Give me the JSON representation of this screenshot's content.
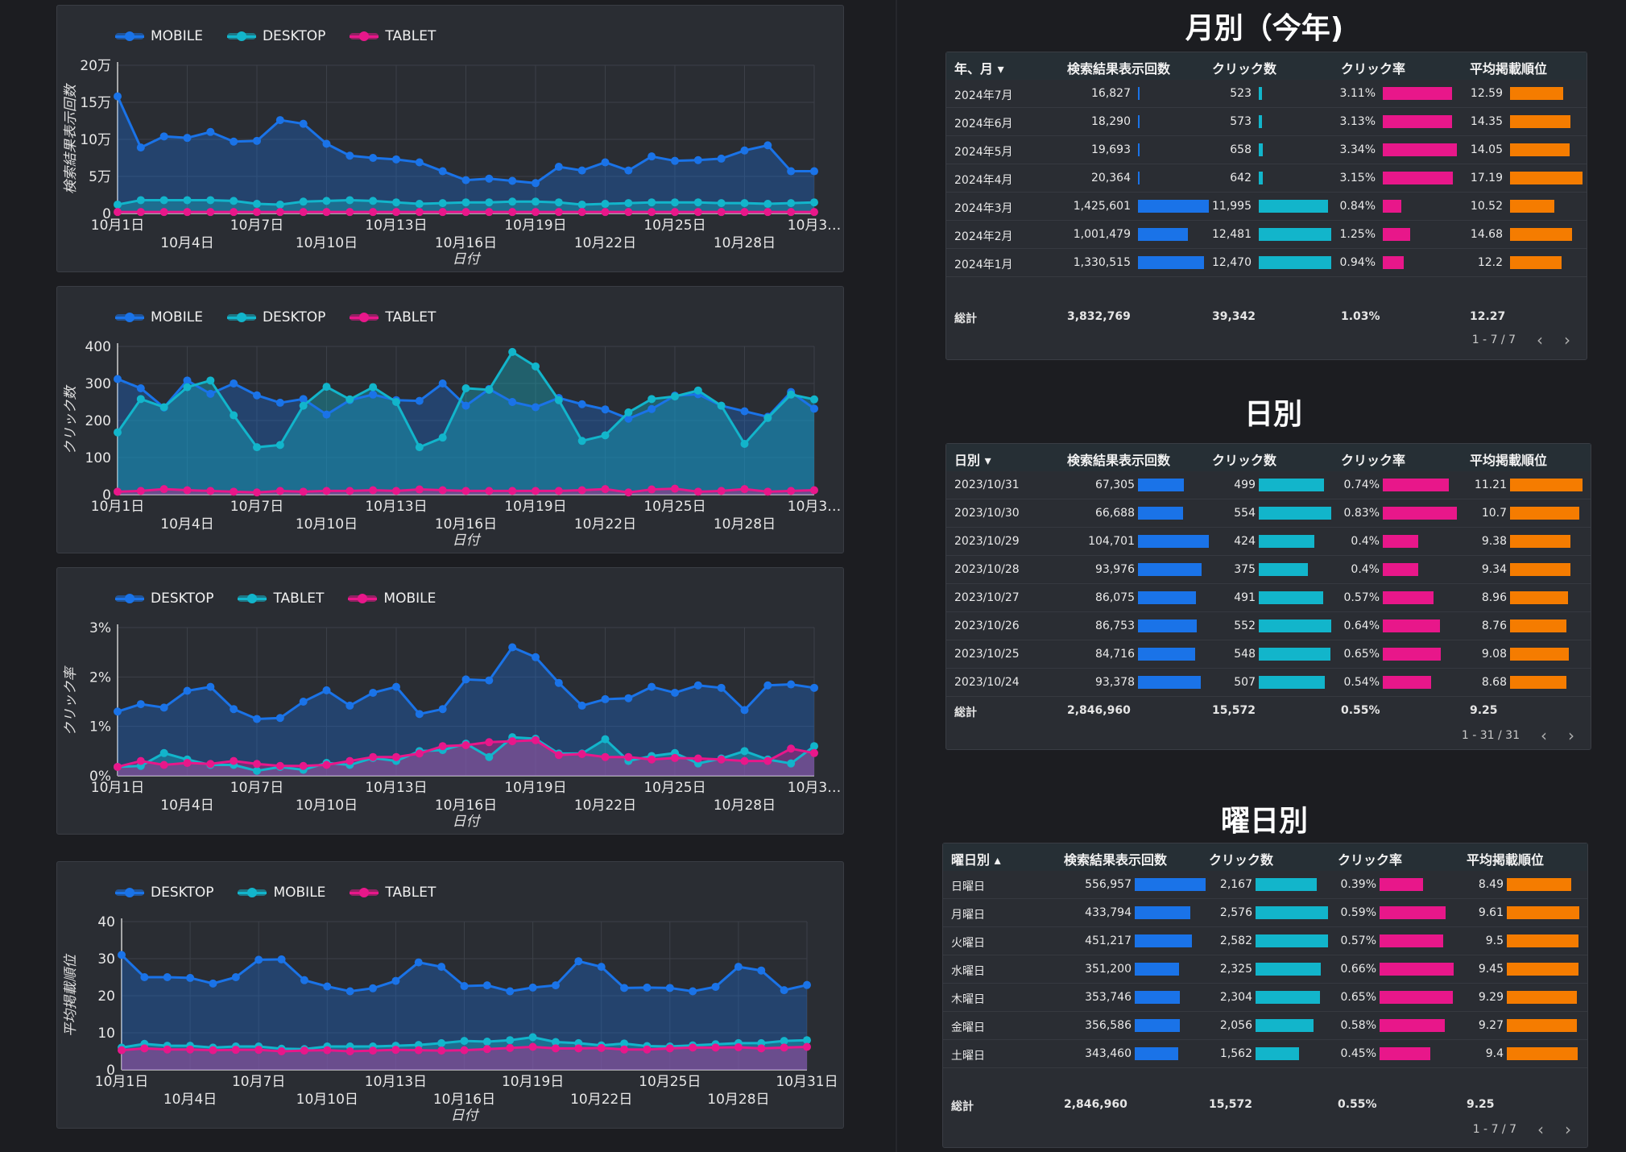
{
  "charts": [
    {
      "ylabel": "検索結果表示回数",
      "xlabel": "日付",
      "ymax": 200000,
      "ytick_values": [
        0,
        50000,
        100000,
        150000,
        200000
      ],
      "ytick_labels": [
        "0",
        "5万",
        "10万",
        "15万",
        "20万"
      ],
      "series": [
        {
          "name": "MOBILE",
          "color": "#1a73e8",
          "values": [
            158000,
            89000,
            104000,
            102000,
            110000,
            97000,
            98000,
            126000,
            121000,
            94000,
            78000,
            75000,
            73000,
            69000,
            57000,
            45000,
            47000,
            44000,
            41000,
            63000,
            58000,
            69000,
            58000,
            77000,
            71000,
            72000,
            74000,
            85000,
            92000,
            57000,
            57000
          ]
        },
        {
          "name": "DESKTOP",
          "color": "#12b5cb",
          "values": [
            12000,
            18000,
            18000,
            18000,
            18000,
            17000,
            13000,
            12000,
            16000,
            17000,
            18000,
            17000,
            15000,
            13000,
            14000,
            15000,
            15000,
            16000,
            16000,
            15000,
            12000,
            13000,
            14000,
            15000,
            15000,
            15000,
            14000,
            14000,
            13000,
            14000,
            15000
          ]
        },
        {
          "name": "TABLET",
          "color": "#e8178a",
          "values": [
            2000,
            2000,
            2000,
            2000,
            2000,
            2000,
            2000,
            2000,
            2000,
            2000,
            2000,
            2000,
            2000,
            2000,
            2000,
            2000,
            2000,
            2000,
            2000,
            2000,
            2000,
            2000,
            2000,
            2000,
            2000,
            2000,
            2000,
            2000,
            2000,
            2000,
            2000
          ]
        }
      ],
      "xticks_top": [
        "10月1日",
        "10月7日",
        "10月13日",
        "10月19日",
        "10月25日",
        "10月3…"
      ],
      "xticks_bottom": [
        "10月4日",
        "10月10日",
        "10月16日",
        "10月22日",
        "10月28日"
      ]
    },
    {
      "ylabel": "クリック数",
      "xlabel": "日付",
      "ymax": 400,
      "ytick_values": [
        0,
        100,
        200,
        300,
        400
      ],
      "ytick_labels": [
        "0",
        "100",
        "200",
        "300",
        "400"
      ],
      "series": [
        {
          "name": "MOBILE",
          "color": "#1a73e8",
          "values": [
            312,
            287,
            235,
            308,
            272,
            300,
            268,
            248,
            258,
            216,
            255,
            270,
            255,
            253,
            300,
            240,
            285,
            250,
            236,
            261,
            244,
            230,
            205,
            231,
            267,
            271,
            240,
            225,
            210,
            277,
            232
          ]
        },
        {
          "name": "DESKTOP",
          "color": "#12b5cb",
          "values": [
            168,
            258,
            236,
            290,
            308,
            214,
            128,
            134,
            240,
            291,
            257,
            290,
            250,
            128,
            154,
            287,
            283,
            385,
            346,
            255,
            145,
            160,
            222,
            258,
            265,
            281,
            240,
            137,
            207,
            270,
            257
          ]
        },
        {
          "name": "TABLET",
          "color": "#e8178a",
          "values": [
            8,
            10,
            15,
            12,
            10,
            8,
            6,
            10,
            8,
            10,
            10,
            12,
            10,
            14,
            12,
            10,
            10,
            10,
            10,
            10,
            12,
            15,
            6,
            14,
            16,
            8,
            10,
            15,
            8,
            10,
            12
          ]
        }
      ],
      "xticks_top": [
        "10月1日",
        "10月7日",
        "10月13日",
        "10月19日",
        "10月25日",
        "10月3…"
      ],
      "xticks_bottom": [
        "10月4日",
        "10月10日",
        "10月16日",
        "10月22日",
        "10月28日"
      ]
    },
    {
      "ylabel": "クリック率",
      "xlabel": "日付",
      "ymax": 3,
      "ytick_values": [
        0,
        1,
        2,
        3
      ],
      "ytick_labels": [
        "0%",
        "1%",
        "2%",
        "3%"
      ],
      "series": [
        {
          "name": "DESKTOP",
          "color": "#1a73e8",
          "values": [
            1.3,
            1.45,
            1.38,
            1.72,
            1.8,
            1.35,
            1.15,
            1.17,
            1.5,
            1.73,
            1.42,
            1.68,
            1.8,
            1.25,
            1.35,
            1.95,
            1.93,
            2.6,
            2.4,
            1.88,
            1.42,
            1.55,
            1.57,
            1.8,
            1.68,
            1.83,
            1.78,
            1.33,
            1.83,
            1.85,
            1.78
          ]
        },
        {
          "name": "TABLET",
          "color": "#12b5cb",
          "values": [
            0.18,
            0.2,
            0.46,
            0.33,
            0.22,
            0.22,
            0.1,
            0.18,
            0.12,
            0.26,
            0.22,
            0.36,
            0.3,
            0.5,
            0.52,
            0.65,
            0.38,
            0.78,
            0.75,
            0.45,
            0.45,
            0.74,
            0.3,
            0.4,
            0.46,
            0.25,
            0.35,
            0.5,
            0.33,
            0.25,
            0.6
          ]
        },
        {
          "name": "MOBILE",
          "color": "#e8178a",
          "values": [
            0.18,
            0.3,
            0.22,
            0.26,
            0.24,
            0.3,
            0.24,
            0.2,
            0.2,
            0.22,
            0.3,
            0.38,
            0.38,
            0.45,
            0.6,
            0.62,
            0.68,
            0.7,
            0.72,
            0.42,
            0.44,
            0.38,
            0.38,
            0.33,
            0.36,
            0.35,
            0.33,
            0.3,
            0.3,
            0.55,
            0.46
          ]
        }
      ],
      "xticks_top": [
        "10月1日",
        "10月7日",
        "10月13日",
        "10月19日",
        "10月25日",
        "10月3…"
      ],
      "xticks_bottom": [
        "10月4日",
        "10月10日",
        "10月16日",
        "10月22日",
        "10月28日"
      ]
    },
    {
      "ylabel": "平均掲載順位",
      "xlabel": "日付",
      "ymax": 40,
      "ytick_values": [
        0,
        10,
        20,
        30,
        40
      ],
      "ytick_labels": [
        "0",
        "10",
        "20",
        "30",
        "40"
      ],
      "series": [
        {
          "name": "DESKTOP",
          "color": "#1a73e8",
          "values": [
            31,
            25,
            25,
            24.8,
            23.3,
            25,
            29.7,
            29.8,
            24.2,
            22.5,
            21.2,
            22,
            24,
            29,
            27.8,
            22.6,
            22.8,
            21.2,
            22.2,
            22.8,
            29.3,
            27.8,
            22.1,
            22.2,
            22.1,
            21.2,
            22.4,
            27.8,
            26.8,
            21.5,
            22.9
          ]
        },
        {
          "name": "MOBILE",
          "color": "#12b5cb",
          "values": [
            6,
            7,
            6.5,
            6.5,
            6,
            6.3,
            6.3,
            5.7,
            5.6,
            6.3,
            6.3,
            6.3,
            6.5,
            6.7,
            7.2,
            7.8,
            7.6,
            8,
            8.8,
            7.5,
            7.2,
            6.6,
            7.1,
            6.4,
            6.3,
            6.6,
            6.9,
            7.2,
            7.2,
            7.8,
            8
          ]
        },
        {
          "name": "TABLET",
          "color": "#e8178a",
          "values": [
            5.3,
            5.8,
            5.5,
            5.5,
            5.3,
            5.4,
            5.4,
            5,
            5.2,
            5.3,
            5,
            5.2,
            5.4,
            5.3,
            5.2,
            5.3,
            5.6,
            5.9,
            6.2,
            5.8,
            5.8,
            5.9,
            5.5,
            5.5,
            5.8,
            6,
            6,
            6.1,
            5.8,
            6,
            6.2
          ]
        }
      ],
      "xticks_top": [
        "10月1日",
        "10月7日",
        "10月13日",
        "10月19日",
        "10月25日",
        "10月31日"
      ],
      "xticks_bottom": [
        "10月4日",
        "10月10日",
        "10月16日",
        "10月22日",
        "10月28日"
      ]
    }
  ],
  "tables": [
    {
      "title": "月別（今年)",
      "headers": [
        "年、月 ▾",
        "検索結果表示回数",
        "クリック数",
        "クリック率",
        "平均掲載順位"
      ],
      "rows": [
        {
          "label": "2024年7月",
          "imp": "16,827",
          "imp_v": 16827,
          "clk": "523",
          "clk_v": 523,
          "ctr": "3.11%",
          "ctr_v": 3.11,
          "pos": "12.59",
          "pos_v": 12.59
        },
        {
          "label": "2024年6月",
          "imp": "18,290",
          "imp_v": 18290,
          "clk": "573",
          "clk_v": 573,
          "ctr": "3.13%",
          "ctr_v": 3.13,
          "pos": "14.35",
          "pos_v": 14.35
        },
        {
          "label": "2024年5月",
          "imp": "19,693",
          "imp_v": 19693,
          "clk": "658",
          "clk_v": 658,
          "ctr": "3.34%",
          "ctr_v": 3.34,
          "pos": "14.05",
          "pos_v": 14.05
        },
        {
          "label": "2024年4月",
          "imp": "20,364",
          "imp_v": 20364,
          "clk": "642",
          "clk_v": 642,
          "ctr": "3.15%",
          "ctr_v": 3.15,
          "pos": "17.19",
          "pos_v": 17.19
        },
        {
          "label": "2024年3月",
          "imp": "1,425,601",
          "imp_v": 1425601,
          "clk": "11,995",
          "clk_v": 11995,
          "ctr": "0.84%",
          "ctr_v": 0.84,
          "pos": "10.52",
          "pos_v": 10.52
        },
        {
          "label": "2024年2月",
          "imp": "1,001,479",
          "imp_v": 1001479,
          "clk": "12,481",
          "clk_v": 12481,
          "ctr": "1.25%",
          "ctr_v": 1.25,
          "pos": "14.68",
          "pos_v": 14.68
        },
        {
          "label": "2024年1月",
          "imp": "1,330,515",
          "imp_v": 1330515,
          "clk": "12,470",
          "clk_v": 12470,
          "ctr": "0.94%",
          "ctr_v": 0.94,
          "pos": "12.2",
          "pos_v": 12.2
        }
      ],
      "total": {
        "label": "総計",
        "imp": "3,832,769",
        "clk": "39,342",
        "ctr": "1.03%",
        "pos": "12.27"
      },
      "pager": "1 - 7 / 7"
    },
    {
      "title": "日別",
      "headers": [
        "日別 ▾",
        "検索結果表示回数",
        "クリック数",
        "クリック率",
        "平均掲載順位"
      ],
      "rows": [
        {
          "label": "2023/10/31",
          "imp": "67,305",
          "imp_v": 67305,
          "clk": "499",
          "clk_v": 499,
          "ctr": "0.74%",
          "ctr_v": 0.74,
          "pos": "11.21",
          "pos_v": 11.21
        },
        {
          "label": "2023/10/30",
          "imp": "66,688",
          "imp_v": 66688,
          "clk": "554",
          "clk_v": 554,
          "ctr": "0.83%",
          "ctr_v": 0.83,
          "pos": "10.7",
          "pos_v": 10.7
        },
        {
          "label": "2023/10/29",
          "imp": "104,701",
          "imp_v": 104701,
          "clk": "424",
          "clk_v": 424,
          "ctr": "0.4%",
          "ctr_v": 0.4,
          "pos": "9.38",
          "pos_v": 9.38
        },
        {
          "label": "2023/10/28",
          "imp": "93,976",
          "imp_v": 93976,
          "clk": "375",
          "clk_v": 375,
          "ctr": "0.4%",
          "ctr_v": 0.4,
          "pos": "9.34",
          "pos_v": 9.34
        },
        {
          "label": "2023/10/27",
          "imp": "86,075",
          "imp_v": 86075,
          "clk": "491",
          "clk_v": 491,
          "ctr": "0.57%",
          "ctr_v": 0.57,
          "pos": "8.96",
          "pos_v": 8.96
        },
        {
          "label": "2023/10/26",
          "imp": "86,753",
          "imp_v": 86753,
          "clk": "552",
          "clk_v": 552,
          "ctr": "0.64%",
          "ctr_v": 0.64,
          "pos": "8.76",
          "pos_v": 8.76
        },
        {
          "label": "2023/10/25",
          "imp": "84,716",
          "imp_v": 84716,
          "clk": "548",
          "clk_v": 548,
          "ctr": "0.65%",
          "ctr_v": 0.65,
          "pos": "9.08",
          "pos_v": 9.08
        },
        {
          "label": "2023/10/24",
          "imp": "93,378",
          "imp_v": 93378,
          "clk": "507",
          "clk_v": 507,
          "ctr": "0.54%",
          "ctr_v": 0.54,
          "pos": "8.68",
          "pos_v": 8.68
        }
      ],
      "total": {
        "label": "総計",
        "imp": "2,846,960",
        "clk": "15,572",
        "ctr": "0.55%",
        "pos": "9.25"
      },
      "pager": "1 - 31 / 31"
    },
    {
      "title": "曜日別",
      "headers": [
        "曜日別 ▴",
        "検索結果表示回数",
        "クリック数",
        "クリック率",
        "平均掲載順位"
      ],
      "rows": [
        {
          "label": "日曜日",
          "imp": "556,957",
          "imp_v": 556957,
          "clk": "2,167",
          "clk_v": 2167,
          "ctr": "0.39%",
          "ctr_v": 0.39,
          "pos": "8.49",
          "pos_v": 8.49
        },
        {
          "label": "月曜日",
          "imp": "433,794",
          "imp_v": 433794,
          "clk": "2,576",
          "clk_v": 2576,
          "ctr": "0.59%",
          "ctr_v": 0.59,
          "pos": "9.61",
          "pos_v": 9.61
        },
        {
          "label": "火曜日",
          "imp": "451,217",
          "imp_v": 451217,
          "clk": "2,582",
          "clk_v": 2582,
          "ctr": "0.57%",
          "ctr_v": 0.57,
          "pos": "9.5",
          "pos_v": 9.5
        },
        {
          "label": "水曜日",
          "imp": "351,200",
          "imp_v": 351200,
          "clk": "2,325",
          "clk_v": 2325,
          "ctr": "0.66%",
          "ctr_v": 0.66,
          "pos": "9.45",
          "pos_v": 9.45
        },
        {
          "label": "木曜日",
          "imp": "353,746",
          "imp_v": 353746,
          "clk": "2,304",
          "clk_v": 2304,
          "ctr": "0.65%",
          "ctr_v": 0.65,
          "pos": "9.29",
          "pos_v": 9.29
        },
        {
          "label": "金曜日",
          "imp": "356,586",
          "imp_v": 356586,
          "clk": "2,056",
          "clk_v": 2056,
          "ctr": "0.58%",
          "ctr_v": 0.58,
          "pos": "9.27",
          "pos_v": 9.27
        },
        {
          "label": "土曜日",
          "imp": "343,460",
          "imp_v": 343460,
          "clk": "1,562",
          "clk_v": 1562,
          "ctr": "0.45%",
          "ctr_v": 0.45,
          "pos": "9.4",
          "pos_v": 9.4
        }
      ],
      "total": {
        "label": "総計",
        "imp": "2,846,960",
        "clk": "15,572",
        "ctr": "0.55%",
        "pos": "9.25"
      },
      "pager": "1 - 7 / 7"
    }
  ],
  "colors": {
    "imp_bar": "#1a73e8",
    "clk_bar": "#12b5cb",
    "ctr_bar": "#e8178a",
    "pos_bar": "#f57c00"
  },
  "icons": {
    "prev": "chevron-left-icon",
    "next": "chevron-right-icon"
  }
}
